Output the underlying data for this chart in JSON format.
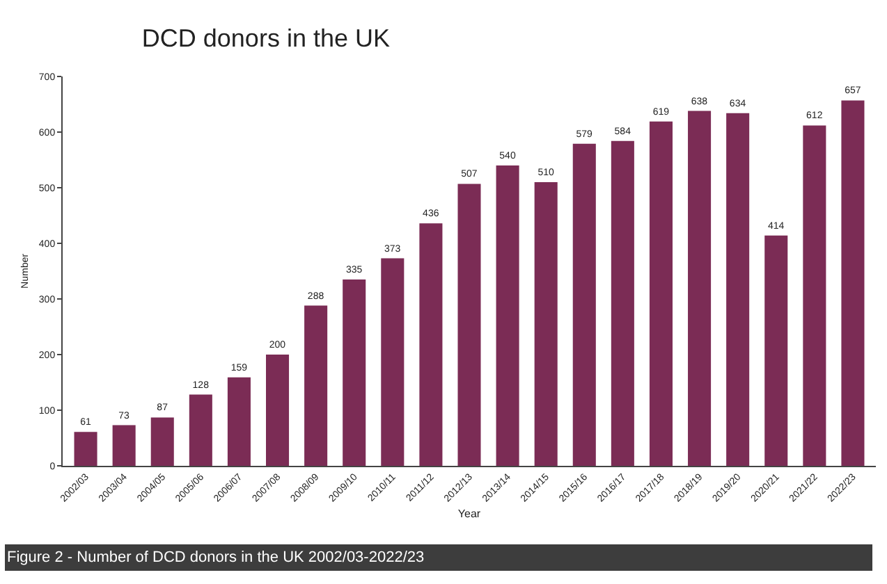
{
  "chart_data": {
    "type": "bar",
    "title": "DCD donors in the UK",
    "xlabel": "Year",
    "ylabel": "Number",
    "categories": [
      "2002/03",
      "2003/04",
      "2004/05",
      "2005/06",
      "2006/07",
      "2007/08",
      "2008/09",
      "2009/10",
      "2010/11",
      "2011/12",
      "2012/13",
      "2013/14",
      "2014/15",
      "2015/16",
      "2016/17",
      "2017/18",
      "2018/19",
      "2019/20",
      "2020/21",
      "2021/22",
      "2022/23"
    ],
    "values": [
      61,
      73,
      87,
      128,
      159,
      200,
      288,
      335,
      373,
      436,
      507,
      540,
      510,
      579,
      584,
      619,
      638,
      634,
      414,
      612,
      657
    ],
    "color": "#7b2c55",
    "data_labels": true,
    "ylim": [
      0,
      700
    ],
    "yticks": [
      0,
      100,
      200,
      300,
      400,
      500,
      600,
      700
    ],
    "annotations": [
      "Figure 2 - Number of DCD donors in the UK 2002/03-2022/23"
    ]
  }
}
